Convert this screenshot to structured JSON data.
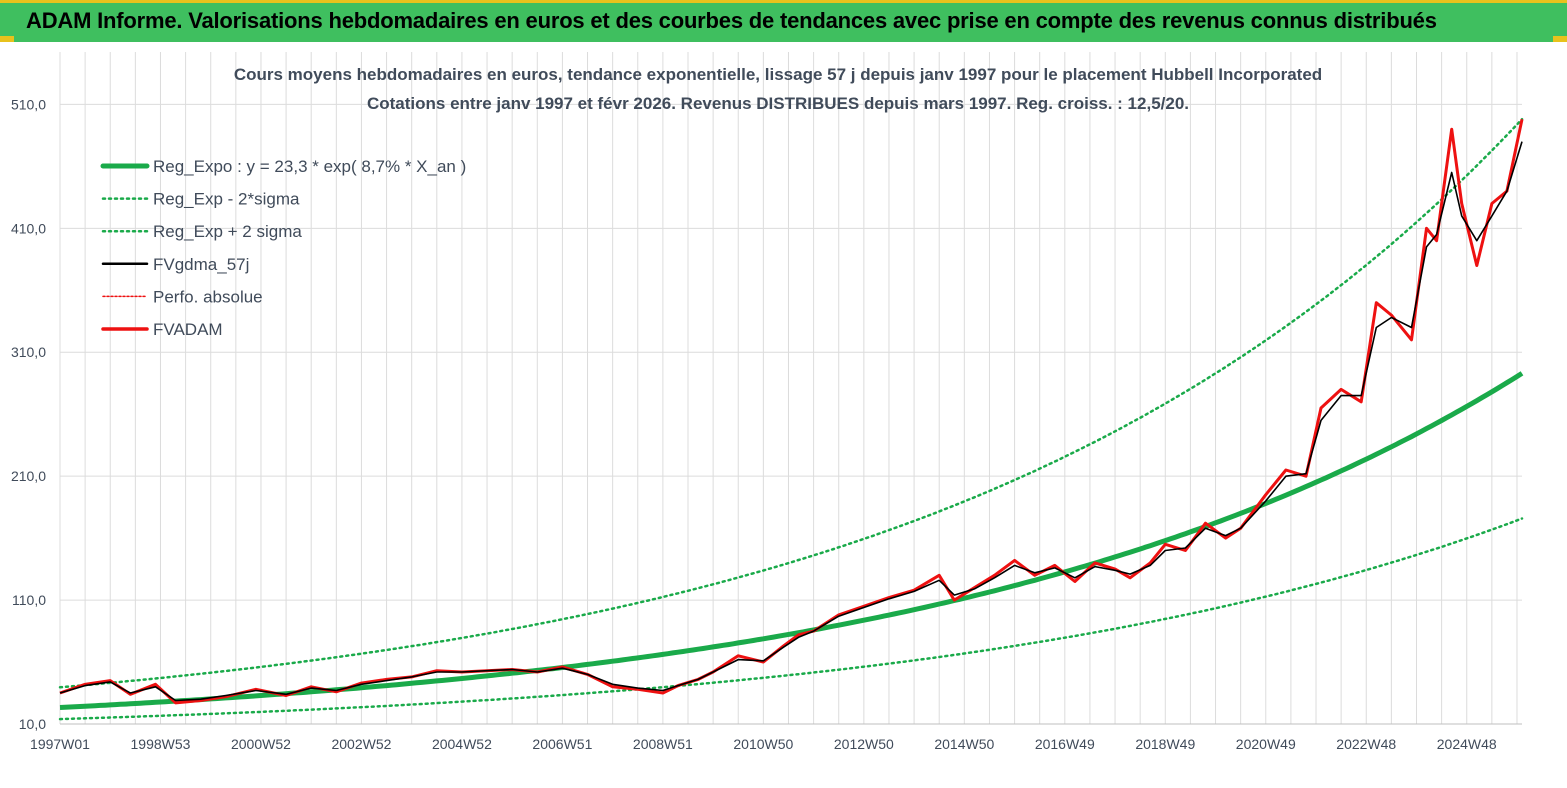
{
  "header": {
    "title": "ADAM Informe. Valorisations hebdomadaires en euros et des courbes de tendances avec prise en compte des revenus connus distribués"
  },
  "colors": {
    "banner": "#3fbf5f",
    "accent": "#e8c21c",
    "reg_expo": "#1aaa4a",
    "fvgdma": "#000000",
    "fvadam": "#ee1111",
    "perfo": "#ee1111",
    "grid": "#dcdcdc",
    "title_text": "#404b5a"
  },
  "chart_data": {
    "type": "line",
    "title": "Cours moyens hebdomadaires en euros, tendance exponentielle, lissage 57 j depuis janv 1997 pour le placement Hubbell Incorporated",
    "subtitle": "Cotations entre janv 1997 et févr 2026. Revenus DISTRIBUES depuis mars 1997. Reg. croiss. : 12,5/20.",
    "xlabel": "",
    "ylabel": "",
    "ylim": [
      10,
      520
    ],
    "x_range_years": [
      1997.0,
      2026.1
    ],
    "y_ticks": [
      "10,0",
      "110,0",
      "210,0",
      "310,0",
      "410,0",
      "510,0"
    ],
    "y_tick_values": [
      10,
      110,
      210,
      310,
      410,
      510
    ],
    "x_tick_labels": [
      "1997W01",
      "1998W53",
      "2000W52",
      "2002W52",
      "2004W52",
      "2006W51",
      "2008W51",
      "2010W50",
      "2012W50",
      "2014W50",
      "2016W49",
      "2018W49",
      "2020W49",
      "2022W48",
      "2024W48"
    ],
    "x_tick_years": [
      1997.0,
      1999.0,
      2001.0,
      2003.0,
      2005.0,
      2007.0,
      2009.0,
      2011.0,
      2013.0,
      2015.0,
      2017.0,
      2019.0,
      2021.0,
      2023.0,
      2025.0
    ],
    "legend": [
      "Reg_Expo : y = 23,3 * exp( 8,7% *  X_an )",
      "Reg_Exp - 2*sigma",
      "Reg_Exp + 2 sigma",
      "FVgdma_57j",
      "Perfo. absolue",
      "FVADAM"
    ],
    "legend_position": "top-left",
    "regression": {
      "a": 23.3,
      "rate": 0.087,
      "lower_factor": 0.6,
      "upper_factor": 1.7
    },
    "series": [
      {
        "name": "FVADAM",
        "x": [
          1997.0,
          1997.5,
          1998.0,
          1998.4,
          1998.9,
          1999.3,
          1999.8,
          2000.3,
          2000.9,
          2001.5,
          2002.0,
          2002.5,
          2003.0,
          2003.5,
          2004.0,
          2004.5,
          2005.0,
          2005.5,
          2006.0,
          2006.5,
          2007.0,
          2007.5,
          2008.0,
          2008.5,
          2009.0,
          2009.3,
          2009.7,
          2010.0,
          2010.5,
          2011.0,
          2011.4,
          2011.7,
          2012.0,
          2012.5,
          2013.0,
          2013.5,
          2014.0,
          2014.5,
          2014.8,
          2015.2,
          2015.6,
          2016.0,
          2016.4,
          2016.8,
          2017.2,
          2017.6,
          2018.0,
          2018.3,
          2018.7,
          2019.0,
          2019.4,
          2019.8,
          2020.2,
          2020.5,
          2021.0,
          2021.4,
          2021.8,
          2022.1,
          2022.5,
          2022.9,
          2023.2,
          2023.5,
          2023.9,
          2024.2,
          2024.4,
          2024.7,
          2024.9,
          2025.2,
          2025.5,
          2025.8,
          2026.1
        ],
        "y": [
          35,
          42,
          45,
          34,
          42,
          27,
          29,
          32,
          38,
          33,
          40,
          36,
          43,
          46,
          48,
          53,
          52,
          53,
          54,
          52,
          56,
          50,
          40,
          38,
          35,
          41,
          46,
          52,
          65,
          60,
          73,
          82,
          85,
          98,
          105,
          112,
          118,
          130,
          110,
          120,
          130,
          142,
          130,
          138,
          125,
          140,
          135,
          128,
          140,
          155,
          150,
          172,
          160,
          168,
          195,
          215,
          210,
          265,
          280,
          270,
          350,
          340,
          320,
          410,
          400,
          490,
          430,
          380,
          430,
          440,
          498
        ]
      },
      {
        "name": "FVgdma_57j",
        "x": [
          1997.0,
          1997.5,
          1998.0,
          1998.4,
          1998.9,
          1999.3,
          1999.8,
          2000.3,
          2000.9,
          2001.5,
          2002.0,
          2002.5,
          2003.0,
          2003.5,
          2004.0,
          2004.5,
          2005.0,
          2005.5,
          2006.0,
          2006.5,
          2007.0,
          2007.5,
          2008.0,
          2008.5,
          2009.0,
          2009.3,
          2009.7,
          2010.0,
          2010.5,
          2011.0,
          2011.4,
          2011.7,
          2012.0,
          2012.5,
          2013.0,
          2013.5,
          2014.0,
          2014.5,
          2014.8,
          2015.2,
          2015.6,
          2016.0,
          2016.4,
          2016.8,
          2017.2,
          2017.6,
          2018.0,
          2018.3,
          2018.7,
          2019.0,
          2019.4,
          2019.8,
          2020.2,
          2020.5,
          2021.0,
          2021.4,
          2021.8,
          2022.1,
          2022.5,
          2022.9,
          2023.2,
          2023.5,
          2023.9,
          2024.2,
          2024.4,
          2024.7,
          2024.9,
          2025.2,
          2025.5,
          2025.8,
          2026.1
        ],
        "y": [
          35,
          41,
          44,
          35,
          40,
          29,
          30,
          33,
          37,
          34,
          39,
          37,
          42,
          45,
          48,
          52,
          52,
          53,
          54,
          52,
          55,
          50,
          42,
          39,
          37,
          41,
          46,
          52,
          62,
          61,
          72,
          80,
          85,
          97,
          104,
          111,
          117,
          126,
          114,
          119,
          128,
          138,
          132,
          136,
          128,
          137,
          134,
          131,
          138,
          150,
          152,
          168,
          162,
          168,
          190,
          210,
          212,
          255,
          275,
          275,
          330,
          338,
          330,
          395,
          405,
          455,
          420,
          400,
          420,
          440,
          480
        ]
      },
      {
        "name": "Reg_Expo",
        "formula": "23.3 * exp(0.087 * X_an)"
      },
      {
        "name": "Reg_Exp - 2*sigma",
        "formula": "0.6 * Reg_Expo"
      },
      {
        "name": "Reg_Exp + 2 sigma",
        "formula": "1.7 * Reg_Expo"
      }
    ]
  }
}
